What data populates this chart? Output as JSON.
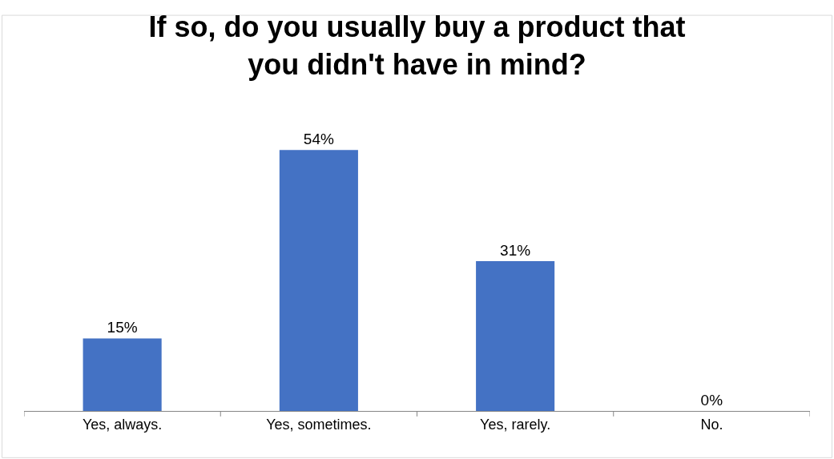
{
  "chart_data": {
    "type": "bar",
    "title": "If so, do you usually buy a product that you didn't have in mind?",
    "categories": [
      "Yes, always.",
      "Yes, sometimes.",
      "Yes, rarely.",
      "No."
    ],
    "values": [
      15,
      54,
      31,
      0
    ],
    "value_labels": [
      "15%",
      "54%",
      "31%",
      "0%"
    ],
    "color": "#4472c4"
  }
}
